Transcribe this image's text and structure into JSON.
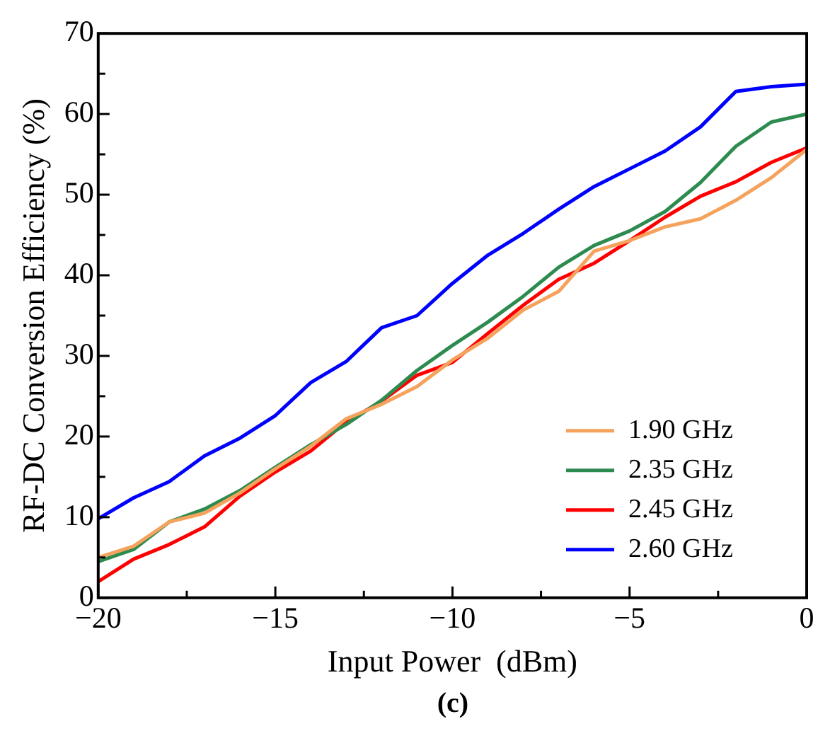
{
  "chart_data": {
    "type": "line",
    "xlabel": "Input Power  (dBm)",
    "ylabel": "RF-DC Conversion Efficiency (%)",
    "x": [
      -20,
      -19,
      -18,
      -17,
      -16,
      -15,
      -14,
      -13,
      -12,
      -11,
      -10,
      -9,
      -8,
      -7,
      -6,
      -5,
      -4,
      -3,
      -2,
      -1,
      0
    ],
    "series": [
      {
        "name": "1.90 GHz",
        "color": "#f5a25d",
        "values": [
          5,
          6.4,
          9.4,
          10.5,
          13,
          16,
          18.8,
          22.2,
          24,
          26.2,
          29.5,
          32.2,
          35.7,
          38,
          43,
          44.3,
          46,
          47,
          49.3,
          52.1,
          55.6
        ]
      },
      {
        "name": "2.35 GHz",
        "color": "#2e8b4f",
        "values": [
          4.5,
          6,
          9.4,
          11,
          13.3,
          16.2,
          19,
          21.5,
          24.5,
          28.2,
          31.3,
          34.2,
          37.4,
          41,
          43.7,
          45.5,
          47.9,
          51.5,
          56,
          59,
          60
        ]
      },
      {
        "name": "2.45 GHz",
        "color": "#ff0000",
        "values": [
          2,
          4.8,
          6.6,
          8.8,
          12.6,
          15.6,
          18.2,
          21.8,
          24.4,
          27.6,
          29.2,
          32.8,
          36.3,
          39.5,
          41.5,
          44.3,
          47.2,
          49.8,
          51.6,
          54,
          55.8
        ]
      },
      {
        "name": "2.60 GHz",
        "color": "#0000ff",
        "values": [
          9.8,
          12.4,
          14.4,
          17.6,
          19.8,
          22.6,
          26.7,
          29.3,
          33.5,
          35,
          39,
          42.5,
          45.2,
          48.2,
          51,
          53.2,
          55.4,
          58.4,
          62.8,
          63.4,
          63.7
        ]
      }
    ],
    "xlim": [
      -20,
      0
    ],
    "xticks": [
      -20,
      {
        "value": -17.5,
        "label": null
      },
      -15,
      {
        "value": -12.5,
        "label": null
      },
      -10,
      {
        "value": -7.5,
        "label": null
      },
      -5,
      {
        "value": -2.5,
        "label": null
      },
      0
    ],
    "ylim": [
      0,
      70
    ],
    "yticks": [
      0,
      {
        "value": 5,
        "label": null
      },
      10,
      {
        "value": 15,
        "label": null
      },
      20,
      {
        "value": 25,
        "label": null
      },
      30,
      {
        "value": 35,
        "label": null
      },
      40,
      {
        "value": 45,
        "label": null
      },
      50,
      {
        "value": 55,
        "label": null
      },
      60,
      {
        "value": 65,
        "label": null
      },
      70
    ],
    "grid": false,
    "legend": "bottom right",
    "marker": "none",
    "line_style": "solid",
    "annotations": [
      "(c)"
    ]
  }
}
